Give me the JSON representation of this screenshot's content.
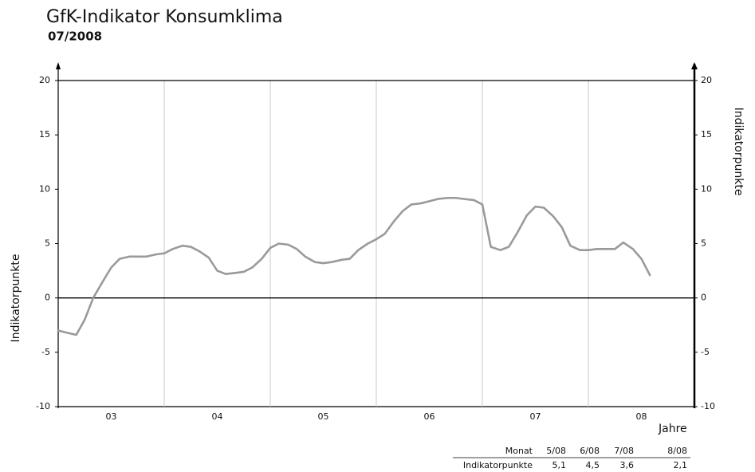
{
  "chart_data": {
    "type": "line",
    "title": "GfK-Indikator Konsumklima",
    "subtitle": "07/2008",
    "y_axis_label": "Indikatorpunkte",
    "y2_axis_label": "Indikatorpunkte",
    "x_axis_label": "Jahre",
    "xlim": [
      3,
      9
    ],
    "xticks": [
      {
        "value": 3.5,
        "label": "03"
      },
      {
        "value": 4.5,
        "label": "04"
      },
      {
        "value": 5.5,
        "label": "05"
      },
      {
        "value": 6.5,
        "label": "06"
      },
      {
        "value": 7.5,
        "label": "07"
      },
      {
        "value": 8.5,
        "label": "08"
      }
    ],
    "x_gridlines": [
      4,
      5,
      6,
      7,
      8
    ],
    "ylim": [
      -10,
      20
    ],
    "yticks": [
      -10,
      -5,
      0,
      5,
      10,
      15,
      20
    ],
    "y2lim": [
      -10,
      20
    ],
    "y2ticks": [
      -10,
      -5,
      0,
      5,
      10,
      15,
      20
    ],
    "x": [
      3.0,
      3.08,
      3.17,
      3.25,
      3.33,
      3.42,
      3.5,
      3.58,
      3.67,
      3.75,
      3.83,
      3.92,
      4.0,
      4.08,
      4.17,
      4.25,
      4.33,
      4.42,
      4.5,
      4.58,
      4.67,
      4.75,
      4.83,
      4.92,
      5.0,
      5.08,
      5.17,
      5.25,
      5.33,
      5.42,
      5.5,
      5.58,
      5.67,
      5.75,
      5.83,
      5.92,
      6.0,
      6.08,
      6.17,
      6.25,
      6.33,
      6.42,
      6.5,
      6.58,
      6.67,
      6.75,
      6.83,
      6.92,
      7.0,
      7.08,
      7.17,
      7.25,
      7.33,
      7.42,
      7.5,
      7.58,
      7.67,
      7.75,
      7.83,
      7.92,
      8.0,
      8.08,
      8.17,
      8.25,
      8.33,
      8.42,
      8.5,
      8.58
    ],
    "series": [
      {
        "name": "Indikatorpunkte",
        "color": "#9a9a9a",
        "values": [
          -3.0,
          -3.2,
          -3.4,
          -2.0,
          0.0,
          1.5,
          2.8,
          3.6,
          3.8,
          3.8,
          3.8,
          4.0,
          4.1,
          4.5,
          4.8,
          4.7,
          4.3,
          3.7,
          2.5,
          2.2,
          2.3,
          2.4,
          2.8,
          3.6,
          4.6,
          5.0,
          4.9,
          4.5,
          3.8,
          3.3,
          3.2,
          3.3,
          3.5,
          3.6,
          4.4,
          5.0,
          5.4,
          5.9,
          7.1,
          8.0,
          8.6,
          8.7,
          8.9,
          9.1,
          9.2,
          9.2,
          9.1,
          9.0,
          8.6,
          4.7,
          4.4,
          4.7,
          6.0,
          7.6,
          8.4,
          8.3,
          7.5,
          6.5,
          4.8,
          4.4,
          4.4,
          4.5,
          4.5,
          4.5,
          5.1,
          4.5,
          3.6,
          2.1
        ]
      }
    ],
    "table": {
      "header": [
        "Monat",
        "5/08",
        "6/08",
        "7/08",
        "8/08"
      ],
      "rows": [
        [
          "Indikatorpunkte",
          "5,1",
          "4,5",
          "3,6",
          "2,1"
        ]
      ]
    }
  }
}
